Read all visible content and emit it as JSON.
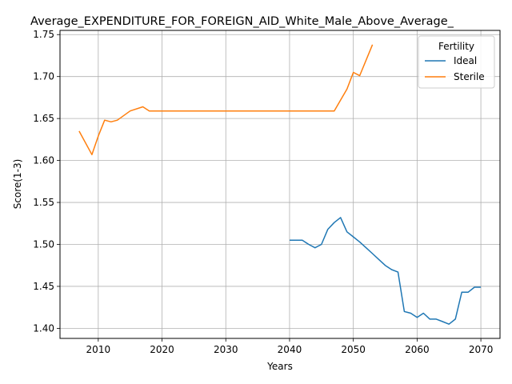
{
  "chart_data": {
    "type": "line",
    "title": "Average_EXPENDITURE_FOR_FOREIGN_AID_White_Male_Above_Average_",
    "xlabel": "Years",
    "ylabel": "Score(1-3)",
    "xlim": [
      2004,
      2073
    ],
    "ylim": [
      1.388,
      1.755
    ],
    "xticks": [
      2010,
      2020,
      2030,
      2040,
      2050,
      2060,
      2070
    ],
    "yticks": [
      1.4,
      1.45,
      1.5,
      1.55,
      1.6,
      1.65,
      1.7,
      1.75
    ],
    "xtick_labels": [
      "2010",
      "2020",
      "2030",
      "2040",
      "2050",
      "2060",
      "2070"
    ],
    "ytick_labels": [
      "1.40",
      "1.45",
      "1.50",
      "1.55",
      "1.60",
      "1.65",
      "1.70",
      "1.75"
    ],
    "grid": true,
    "legend": {
      "title": "Fertility",
      "position": "top-right"
    },
    "series": [
      {
        "name": "Ideal",
        "color": "#1f77b4",
        "x": [
          2040,
          2041,
          2042,
          2043,
          2044,
          2045,
          2046,
          2047,
          2048,
          2049,
          2050,
          2051,
          2052,
          2053,
          2054,
          2055,
          2056,
          2057,
          2058,
          2059,
          2060,
          2061,
          2062,
          2063,
          2064,
          2065,
          2066,
          2067,
          2068,
          2069,
          2070
        ],
        "y": [
          1.505,
          1.505,
          1.505,
          1.5,
          1.496,
          1.5,
          1.518,
          1.526,
          1.532,
          1.515,
          1.509,
          1.503,
          1.496,
          1.489,
          1.482,
          1.475,
          1.47,
          1.467,
          1.42,
          1.418,
          1.413,
          1.418,
          1.411,
          1.411,
          1.408,
          1.405,
          1.411,
          1.443,
          1.443,
          1.449,
          1.449
        ]
      },
      {
        "name": "Sterile",
        "color": "#ff7f0e",
        "x": [
          2007,
          2009,
          2010,
          2011,
          2012,
          2013,
          2015,
          2017,
          2018,
          2020,
          2025,
          2030,
          2035,
          2040,
          2045,
          2047,
          2049,
          2050,
          2051,
          2053
        ],
        "y": [
          1.635,
          1.607,
          1.629,
          1.648,
          1.646,
          1.648,
          1.659,
          1.664,
          1.659,
          1.659,
          1.659,
          1.659,
          1.659,
          1.659,
          1.659,
          1.659,
          1.685,
          1.705,
          1.701,
          1.738
        ]
      }
    ]
  }
}
